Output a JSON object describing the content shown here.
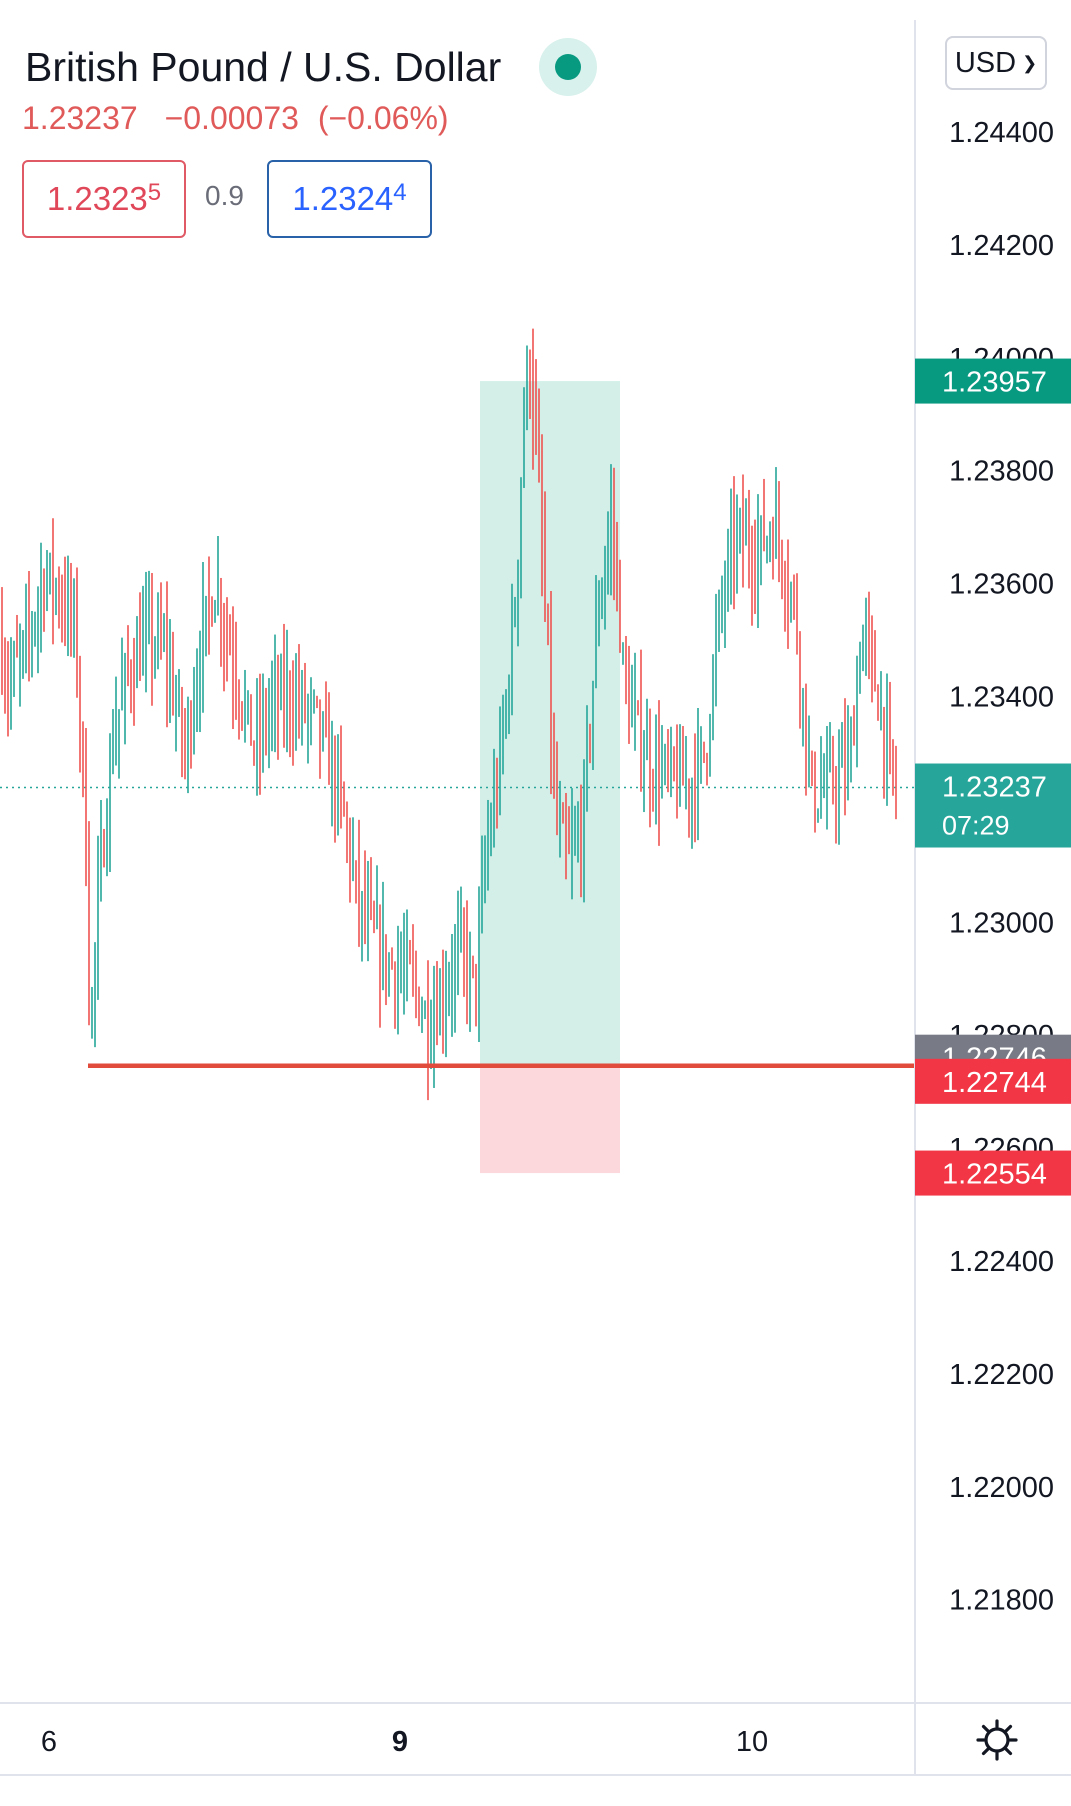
{
  "header": {
    "title": "British Pound / U.S. Dollar",
    "last_price": "1.23237",
    "change": "−0.00073",
    "change_pct": "(−0.06%)",
    "bid": {
      "main": "1.2323",
      "pip": "5"
    },
    "spread": "0.9",
    "ask": {
      "main": "1.2324",
      "pip": "4"
    },
    "currency": "USD",
    "status_icon": "market-open-dot-icon"
  },
  "colors": {
    "up": "#26a69a",
    "down": "#ef5350",
    "profit_zone": "#d3efe8",
    "loss_zone": "#fcd7dc",
    "horizontal_line": "#e04b3c"
  },
  "chart_data": {
    "type": "ohlc",
    "y_axis_ticks": [
      1.244,
      1.242,
      1.24,
      1.238,
      1.236,
      1.234,
      1.232,
      1.23,
      1.228,
      1.226,
      1.224,
      1.222,
      1.22,
      1.218
    ],
    "y_tick_labels": [
      "1.24400",
      "1.24200",
      "1.24000",
      "1.23800",
      "1.23600",
      "1.23400",
      "1.23200",
      "1.23000",
      "1.22800",
      "1.22600",
      "1.22400",
      "1.22200",
      "1.22000",
      "1.21800"
    ],
    "x_axis_labels": [
      {
        "label": "6",
        "bold": false
      },
      {
        "label": "9",
        "bold": true
      },
      {
        "label": "10",
        "bold": false
      }
    ],
    "price_labels": [
      {
        "value": 1.23957,
        "text": "1.23957",
        "color": "#089981"
      },
      {
        "value": 1.23237,
        "text": "1.23237",
        "sub": "07:29",
        "color": "#26a69a"
      },
      {
        "value": 1.22746,
        "text": "1.22746",
        "color": "#787b86"
      },
      {
        "value": 1.22744,
        "text": "1.22744",
        "color": "#f23645"
      },
      {
        "value": 1.22554,
        "text": "1.22554",
        "color": "#f23645"
      }
    ],
    "last_price": 1.23237,
    "long_position": {
      "entry": 1.22746,
      "target": 1.23957,
      "stop": 1.22554
    },
    "horizontal_line": 1.22744,
    "series_description": "GBP/USD intraday price bars (about 1.2270 to 1.2405)"
  }
}
